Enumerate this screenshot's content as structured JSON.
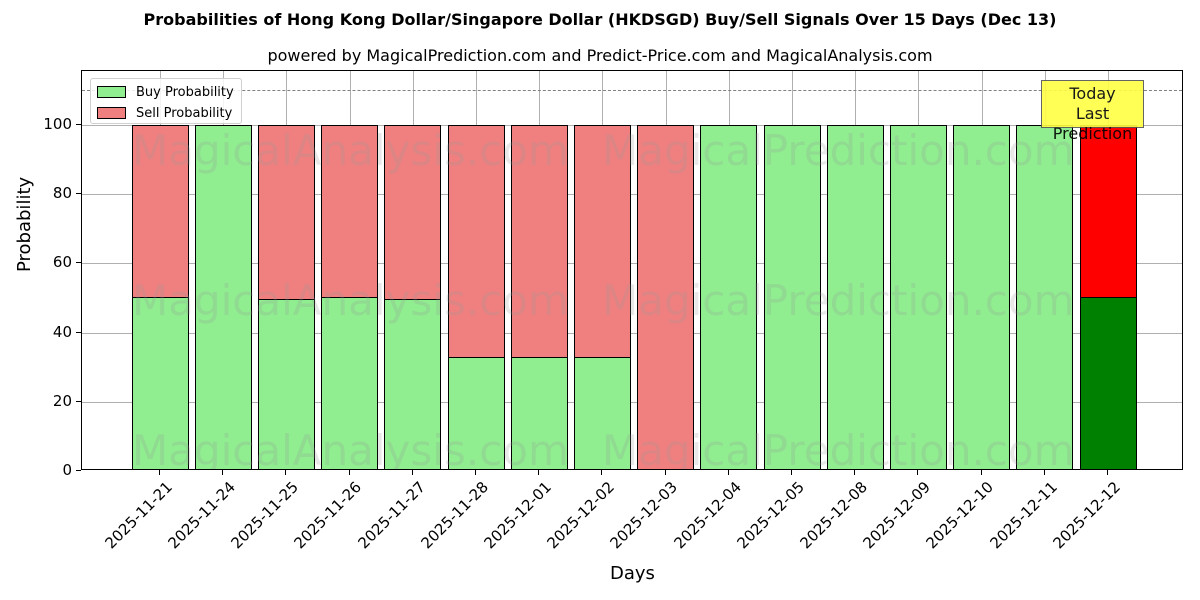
{
  "title": "Probabilities of Hong Kong Dollar/Singapore Dollar (HKDSGD) Buy/Sell Signals Over 15 Days (Dec 13)",
  "subtitle": "powered by MagicalPrediction.com and Predict-Price.com and MagicalAnalysis.com",
  "watermarks": [
    "MagicalAnalysis.com",
    "MagicalPrediction.com"
  ],
  "legend": {
    "buy": "Buy Probability",
    "sell": "Sell Probability"
  },
  "annotation": {
    "line1": "Today",
    "line2": "Last Prediction"
  },
  "colors": {
    "buy": "#90ee90",
    "sell": "#f08080",
    "today_buy": "#008000",
    "today_sell": "#ff0000",
    "annotation_bg": "#ffff44"
  },
  "chart_data": {
    "type": "bar",
    "stacked": true,
    "title": "Probabilities of Hong Kong Dollar/Singapore Dollar (HKDSGD) Buy/Sell Signals Over 15 Days (Dec 13)",
    "subtitle": "powered by MagicalPrediction.com and Predict-Price.com and MagicalAnalysis.com",
    "xlabel": "Days",
    "ylabel": "Probability",
    "ylim": [
      0,
      115
    ],
    "yticks": [
      0,
      20,
      40,
      60,
      80,
      100
    ],
    "grid": true,
    "legend_position": "upper left",
    "reference_line": {
      "y": 110,
      "style": "dashed"
    },
    "categories": [
      "2025-11-21",
      "2025-11-24",
      "2025-11-25",
      "2025-11-26",
      "2025-11-27",
      "2025-11-28",
      "2025-12-01",
      "2025-12-02",
      "2025-12-03",
      "2025-12-04",
      "2025-12-05",
      "2025-12-08",
      "2025-12-09",
      "2025-12-10",
      "2025-12-11",
      "2025-12-12"
    ],
    "series": [
      {
        "name": "Buy Probability",
        "values": [
          50.3,
          100,
          49.7,
          50.3,
          49.7,
          33.0,
          33.0,
          33.0,
          0,
          100,
          100,
          100,
          100,
          100,
          100,
          50.3
        ]
      },
      {
        "name": "Sell Probability",
        "values": [
          49.7,
          0,
          50.3,
          49.7,
          50.3,
          67.0,
          67.0,
          67.0,
          100,
          0,
          0,
          0,
          0,
          0,
          0,
          49.7
        ]
      }
    ],
    "annotations": [
      {
        "text": "Today\nLast Prediction",
        "x": "2025-12-12"
      }
    ]
  }
}
